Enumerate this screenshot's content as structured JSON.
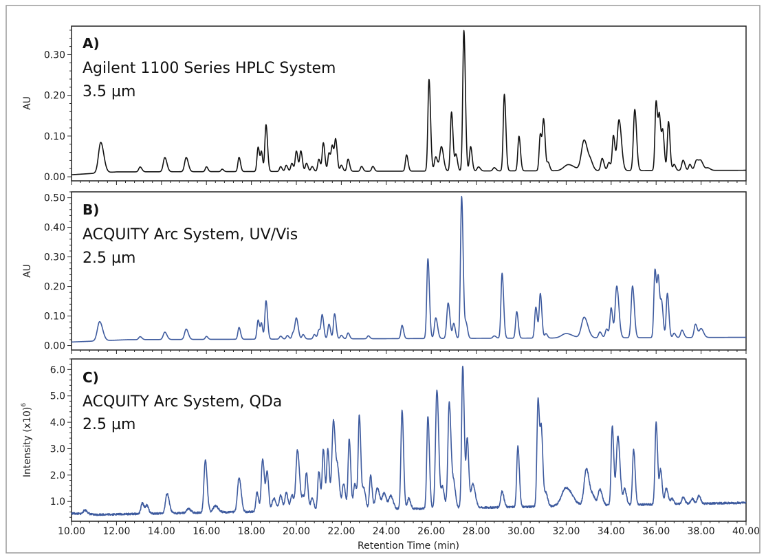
{
  "chart_data": {
    "type": "line",
    "xlabel": "Retention Time (min)",
    "xlim": [
      10.0,
      40.0
    ],
    "x_ticks": [
      10.0,
      12.0,
      14.0,
      16.0,
      18.0,
      20.0,
      22.0,
      24.0,
      26.0,
      28.0,
      30.0,
      32.0,
      34.0,
      36.0,
      38.0,
      40.0
    ],
    "x_tick_labels": [
      "10.00",
      "12.00",
      "14.00",
      "16.00",
      "18.00",
      "20.00",
      "22.00",
      "24.00",
      "26.00",
      "28.00",
      "30.00",
      "32.00",
      "34.00",
      "36.00",
      "38.00",
      "40.00"
    ],
    "panels": [
      {
        "id": "A",
        "letter": "A)",
        "line1": "Agilent 1100 Series HPLC System",
        "line2": "3.5 µm",
        "ylabel": "AU",
        "ylim": [
          -0.01,
          0.37
        ],
        "y_ticks": [
          0.0,
          0.1,
          0.2,
          0.3
        ],
        "y_tick_labels": [
          "0.00",
          "0.10",
          "0.20",
          "0.30"
        ],
        "color": "#111111",
        "baseline": {
          "start": 0.005,
          "plateau_time": 12.0,
          "plateau": 0.012,
          "end": 0.016
        },
        "peaks": [
          [
            11.3,
            0.075,
            0.1
          ],
          [
            13.05,
            0.012,
            0.06
          ],
          [
            14.15,
            0.035,
            0.07
          ],
          [
            15.1,
            0.035,
            0.07
          ],
          [
            16.0,
            0.012,
            0.05
          ],
          [
            16.7,
            0.006,
            0.05
          ],
          [
            17.45,
            0.035,
            0.05
          ],
          [
            18.3,
            0.06,
            0.05
          ],
          [
            18.45,
            0.045,
            0.04
          ],
          [
            18.65,
            0.115,
            0.05
          ],
          [
            19.3,
            0.012,
            0.05
          ],
          [
            19.55,
            0.015,
            0.05
          ],
          [
            19.8,
            0.02,
            0.05
          ],
          [
            20.0,
            0.05,
            0.05
          ],
          [
            20.2,
            0.05,
            0.05
          ],
          [
            20.45,
            0.02,
            0.05
          ],
          [
            20.7,
            0.012,
            0.05
          ],
          [
            21.0,
            0.03,
            0.05
          ],
          [
            21.2,
            0.07,
            0.05
          ],
          [
            21.45,
            0.045,
            0.05
          ],
          [
            21.6,
            0.06,
            0.05
          ],
          [
            21.75,
            0.075,
            0.05
          ],
          [
            22.0,
            0.015,
            0.05
          ],
          [
            22.3,
            0.03,
            0.05
          ],
          [
            22.9,
            0.012,
            0.05
          ],
          [
            23.4,
            0.012,
            0.05
          ],
          [
            24.9,
            0.04,
            0.05
          ],
          [
            25.9,
            0.225,
            0.05
          ],
          [
            26.2,
            0.035,
            0.06
          ],
          [
            26.45,
            0.06,
            0.07
          ],
          [
            26.9,
            0.145,
            0.05
          ],
          [
            27.1,
            0.04,
            0.05
          ],
          [
            27.45,
            0.345,
            0.05
          ],
          [
            27.75,
            0.06,
            0.05
          ],
          [
            28.1,
            0.01,
            0.06
          ],
          [
            28.8,
            0.008,
            0.06
          ],
          [
            29.25,
            0.188,
            0.05
          ],
          [
            29.9,
            0.085,
            0.05
          ],
          [
            30.85,
            0.09,
            0.05
          ],
          [
            31.0,
            0.12,
            0.05
          ],
          [
            31.2,
            0.02,
            0.05
          ],
          [
            32.1,
            0.015,
            0.2
          ],
          [
            32.8,
            0.075,
            0.12
          ],
          [
            33.1,
            0.015,
            0.08
          ],
          [
            33.6,
            0.03,
            0.06
          ],
          [
            33.9,
            0.02,
            0.06
          ],
          [
            34.1,
            0.085,
            0.05
          ],
          [
            34.35,
            0.125,
            0.08
          ],
          [
            35.05,
            0.15,
            0.06
          ],
          [
            36.0,
            0.17,
            0.05
          ],
          [
            36.15,
            0.125,
            0.05
          ],
          [
            36.3,
            0.09,
            0.05
          ],
          [
            36.55,
            0.12,
            0.05
          ],
          [
            36.8,
            0.015,
            0.05
          ],
          [
            37.2,
            0.025,
            0.06
          ],
          [
            37.5,
            0.015,
            0.05
          ],
          [
            37.8,
            0.025,
            0.08
          ],
          [
            38.0,
            0.02,
            0.08
          ],
          [
            38.3,
            0.006,
            0.08
          ]
        ]
      },
      {
        "id": "B",
        "letter": "B)",
        "line1": "ACQUITY Arc System, UV/Vis",
        "line2": "2.5 µm",
        "ylabel": "AU",
        "ylim": [
          -0.015,
          0.52
        ],
        "y_ticks": [
          0.0,
          0.1,
          0.2,
          0.3,
          0.4,
          0.5
        ],
        "y_tick_labels": [
          "0.00",
          "0.10",
          "0.20",
          "0.30",
          "0.40",
          "0.50"
        ],
        "color": "#3d5a9e",
        "baseline": {
          "start": 0.012,
          "plateau_time": 12.5,
          "plateau": 0.02,
          "end": 0.028
        },
        "peaks": [
          [
            11.25,
            0.065,
            0.1
          ],
          [
            13.05,
            0.01,
            0.06
          ],
          [
            14.15,
            0.025,
            0.07
          ],
          [
            15.1,
            0.035,
            0.07
          ],
          [
            16.0,
            0.01,
            0.05
          ],
          [
            17.45,
            0.04,
            0.05
          ],
          [
            18.3,
            0.065,
            0.05
          ],
          [
            18.45,
            0.05,
            0.04
          ],
          [
            18.65,
            0.13,
            0.05
          ],
          [
            19.3,
            0.01,
            0.05
          ],
          [
            19.6,
            0.012,
            0.05
          ],
          [
            19.85,
            0.02,
            0.05
          ],
          [
            20.0,
            0.07,
            0.06
          ],
          [
            20.3,
            0.015,
            0.05
          ],
          [
            20.8,
            0.015,
            0.05
          ],
          [
            21.0,
            0.03,
            0.05
          ],
          [
            21.15,
            0.08,
            0.05
          ],
          [
            21.45,
            0.05,
            0.05
          ],
          [
            21.7,
            0.085,
            0.05
          ],
          [
            22.0,
            0.012,
            0.05
          ],
          [
            22.3,
            0.02,
            0.05
          ],
          [
            23.2,
            0.01,
            0.05
          ],
          [
            24.7,
            0.045,
            0.05
          ],
          [
            25.85,
            0.27,
            0.05
          ],
          [
            26.2,
            0.07,
            0.06
          ],
          [
            26.75,
            0.12,
            0.06
          ],
          [
            27.0,
            0.05,
            0.05
          ],
          [
            27.35,
            0.48,
            0.05
          ],
          [
            27.55,
            0.05,
            0.05
          ],
          [
            28.8,
            0.008,
            0.06
          ],
          [
            29.15,
            0.22,
            0.05
          ],
          [
            29.8,
            0.09,
            0.05
          ],
          [
            30.65,
            0.105,
            0.05
          ],
          [
            30.85,
            0.15,
            0.05
          ],
          [
            31.1,
            0.015,
            0.05
          ],
          [
            32.0,
            0.015,
            0.2
          ],
          [
            32.8,
            0.07,
            0.12
          ],
          [
            33.5,
            0.02,
            0.06
          ],
          [
            33.8,
            0.03,
            0.06
          ],
          [
            34.0,
            0.1,
            0.05
          ],
          [
            34.25,
            0.175,
            0.07
          ],
          [
            34.95,
            0.175,
            0.06
          ],
          [
            35.95,
            0.23,
            0.05
          ],
          [
            36.1,
            0.19,
            0.05
          ],
          [
            36.25,
            0.11,
            0.05
          ],
          [
            36.5,
            0.15,
            0.05
          ],
          [
            36.8,
            0.015,
            0.05
          ],
          [
            37.15,
            0.025,
            0.06
          ],
          [
            37.75,
            0.045,
            0.06
          ],
          [
            38.0,
            0.03,
            0.08
          ]
        ]
      },
      {
        "id": "C",
        "letter": "C)",
        "line1": "ACQUITY Arc System, QDa",
        "line2": "2.5 µm",
        "ylabel": "Intensity (x10)",
        "ylabel_sup": "6",
        "ylim": [
          0.25,
          6.4
        ],
        "y_ticks": [
          1.0,
          2.0,
          3.0,
          4.0,
          5.0,
          6.0
        ],
        "y_tick_labels": [
          "1.0",
          "2.0",
          "3.0",
          "4.0",
          "5.0",
          "6.0"
        ],
        "color": "#3d5a9e",
        "baseline": {
          "start": 0.55,
          "plateau_time": 11.0,
          "plateau": 0.5,
          "end": 0.95
        },
        "peaks": [
          [
            10.6,
            0.15,
            0.08
          ],
          [
            13.15,
            0.4,
            0.06
          ],
          [
            13.35,
            0.3,
            0.06
          ],
          [
            14.25,
            0.75,
            0.07
          ],
          [
            15.2,
            0.15,
            0.08
          ],
          [
            15.95,
            2.0,
            0.06
          ],
          [
            16.4,
            0.25,
            0.1
          ],
          [
            17.45,
            1.3,
            0.07
          ],
          [
            18.25,
            0.75,
            0.05
          ],
          [
            18.5,
            2.0,
            0.06
          ],
          [
            18.7,
            1.45,
            0.05
          ],
          [
            19.0,
            0.5,
            0.08
          ],
          [
            19.3,
            0.6,
            0.06
          ],
          [
            19.55,
            0.7,
            0.06
          ],
          [
            19.8,
            0.6,
            0.06
          ],
          [
            20.05,
            2.3,
            0.07
          ],
          [
            20.3,
            0.5,
            0.05
          ],
          [
            20.45,
            1.4,
            0.05
          ],
          [
            20.7,
            0.5,
            0.06
          ],
          [
            21.0,
            1.5,
            0.05
          ],
          [
            21.2,
            2.3,
            0.05
          ],
          [
            21.4,
            2.3,
            0.05
          ],
          [
            21.65,
            3.4,
            0.07
          ],
          [
            21.85,
            1.3,
            0.06
          ],
          [
            22.1,
            1.0,
            0.06
          ],
          [
            22.35,
            2.7,
            0.05
          ],
          [
            22.6,
            1.0,
            0.06
          ],
          [
            22.8,
            3.55,
            0.05
          ],
          [
            23.0,
            0.8,
            0.06
          ],
          [
            23.3,
            1.3,
            0.05
          ],
          [
            23.6,
            0.8,
            0.08
          ],
          [
            23.9,
            0.6,
            0.08
          ],
          [
            24.2,
            0.5,
            0.08
          ],
          [
            24.7,
            3.75,
            0.05
          ],
          [
            25.0,
            0.4,
            0.06
          ],
          [
            25.85,
            3.5,
            0.05
          ],
          [
            26.25,
            4.5,
            0.06
          ],
          [
            26.5,
            0.8,
            0.06
          ],
          [
            26.8,
            4.0,
            0.06
          ],
          [
            27.0,
            0.9,
            0.06
          ],
          [
            27.4,
            5.4,
            0.05
          ],
          [
            27.6,
            2.6,
            0.05
          ],
          [
            27.85,
            0.9,
            0.08
          ],
          [
            29.15,
            0.6,
            0.06
          ],
          [
            29.85,
            2.3,
            0.05
          ],
          [
            30.75,
            4.1,
            0.05
          ],
          [
            30.9,
            2.7,
            0.05
          ],
          [
            31.1,
            0.5,
            0.06
          ],
          [
            32.0,
            0.7,
            0.2
          ],
          [
            32.9,
            1.4,
            0.1
          ],
          [
            33.2,
            0.3,
            0.08
          ],
          [
            33.5,
            0.6,
            0.08
          ],
          [
            34.05,
            3.0,
            0.05
          ],
          [
            34.3,
            2.6,
            0.07
          ],
          [
            34.6,
            0.6,
            0.06
          ],
          [
            35.0,
            2.1,
            0.05
          ],
          [
            36.0,
            3.1,
            0.05
          ],
          [
            36.2,
            1.3,
            0.05
          ],
          [
            36.45,
            0.6,
            0.06
          ],
          [
            36.7,
            0.2,
            0.06
          ],
          [
            37.2,
            0.25,
            0.06
          ],
          [
            37.6,
            0.2,
            0.06
          ],
          [
            37.9,
            0.3,
            0.06
          ]
        ]
      }
    ]
  }
}
